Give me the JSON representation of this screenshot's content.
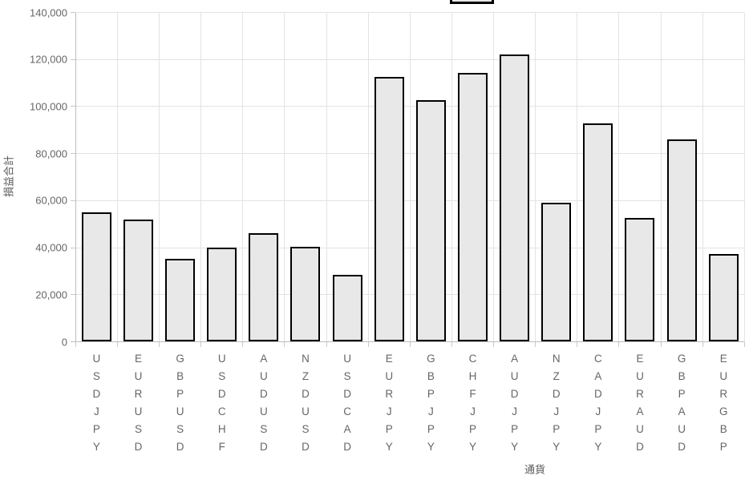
{
  "chart_data": {
    "type": "bar",
    "title": "",
    "categories": [
      "USDJPY",
      "EURUSD",
      "GBPUSD",
      "USDCHF",
      "AUDUSD",
      "NZDUSD",
      "USDCAD",
      "EURJPY",
      "GBPJPY",
      "CHFJPY",
      "AUDJPY",
      "NZDJPY",
      "CADJPY",
      "EURAUD",
      "GBPAUD",
      "EURGBP"
    ],
    "values": [
      55000,
      52000,
      35400,
      40000,
      46300,
      40500,
      28500,
      112600,
      102700,
      114200,
      122000,
      59200,
      92800,
      52700,
      85900,
      37400
    ],
    "xlabel": "通貨",
    "ylabel": "損益合計",
    "ylim": [
      0,
      140000
    ],
    "ytick_step": 20000,
    "ytick_labels": [
      "0",
      "20,000",
      "40,000",
      "60,000",
      "80,000",
      "100,000",
      "120,000",
      "140,000"
    ],
    "grid": true,
    "legend_position": "top-center-clipped",
    "style": {
      "bar_fill": "#e8e8e8",
      "bar_border": "#000000",
      "grid_color": "#e3e3e3",
      "axis_line_color": "#bdbdbd",
      "tick_mark_color": "#c9c9c9",
      "tick_text_color": "#666666"
    }
  }
}
